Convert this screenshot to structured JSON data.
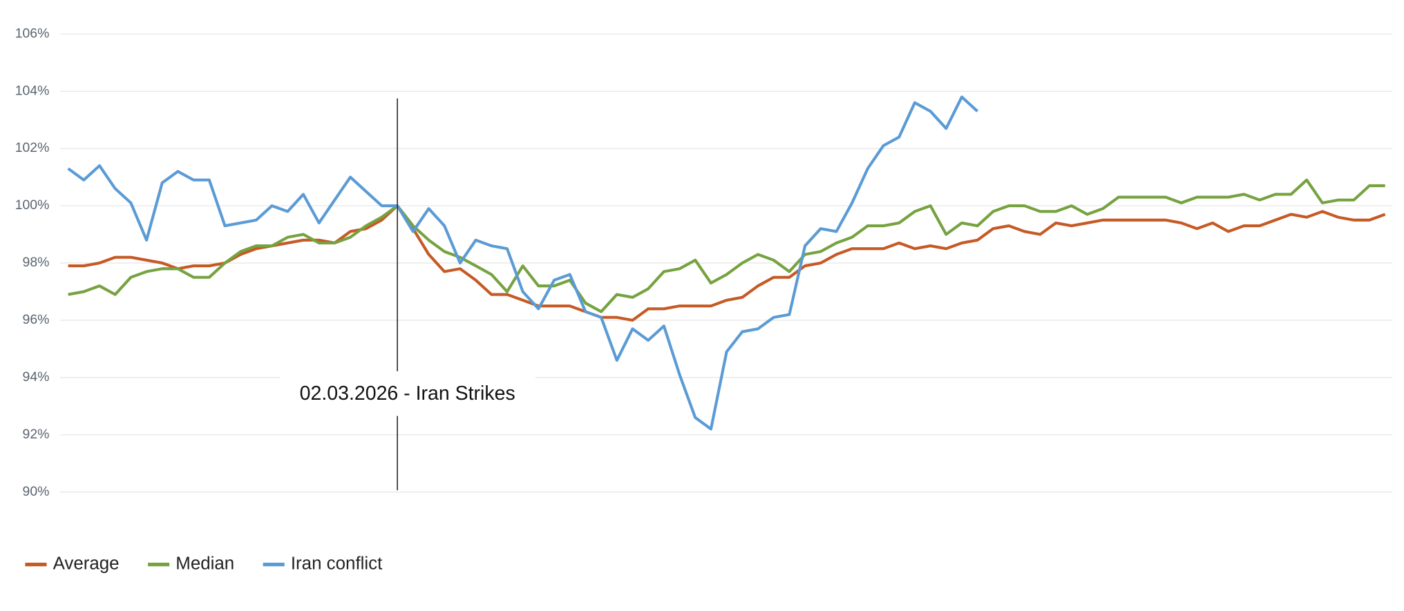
{
  "chart_data": {
    "type": "line",
    "categories": [
      null,
      null,
      null,
      null,
      null,
      null,
      null,
      null,
      null,
      null,
      null,
      null,
      null,
      null,
      null,
      null,
      null,
      null,
      null,
      null,
      null,
      null,
      null,
      null,
      null,
      null,
      null,
      null,
      null,
      null,
      null,
      null,
      null,
      null,
      null,
      null,
      null,
      null,
      null,
      null,
      null,
      null,
      null,
      null,
      null,
      null,
      null,
      null,
      null,
      null,
      null,
      null,
      null,
      null,
      null,
      null,
      null,
      null,
      null,
      null,
      null,
      null,
      null,
      null,
      null,
      null,
      null,
      null,
      null,
      null,
      null,
      null,
      null,
      null,
      null,
      null,
      null,
      null,
      null,
      null,
      null,
      null,
      null,
      null,
      null
    ],
    "series": [
      {
        "name": "Average",
        "color": "#c55a25",
        "values": [
          97.9,
          97.9,
          98.0,
          98.2,
          98.2,
          98.1,
          98.0,
          97.8,
          97.9,
          97.9,
          98.0,
          98.3,
          98.5,
          98.6,
          98.7,
          98.8,
          98.8,
          98.7,
          99.1,
          99.2,
          99.5,
          100.0,
          99.2,
          98.3,
          97.7,
          97.8,
          97.4,
          96.9,
          96.9,
          96.7,
          96.5,
          96.5,
          96.5,
          96.3,
          96.1,
          96.1,
          96.0,
          96.4,
          96.4,
          96.5,
          96.5,
          96.5,
          96.7,
          96.8,
          97.2,
          97.5,
          97.5,
          97.9,
          98.0,
          98.3,
          98.5,
          98.5,
          98.5,
          98.7,
          98.5,
          98.6,
          98.5,
          98.7,
          98.8,
          99.2,
          99.3,
          99.1,
          99.0,
          99.4,
          99.3,
          99.4,
          99.5,
          99.5,
          99.5,
          99.5,
          99.5,
          99.4,
          99.2,
          99.4,
          99.1,
          99.3,
          99.3,
          99.5,
          99.7,
          99.6,
          99.8,
          99.6,
          99.5,
          99.5,
          99.7
        ]
      },
      {
        "name": "Median",
        "color": "#76a240",
        "values": [
          96.9,
          97.0,
          97.2,
          96.9,
          97.5,
          97.7,
          97.8,
          97.8,
          97.5,
          97.5,
          98.0,
          98.4,
          98.6,
          98.6,
          98.9,
          99.0,
          98.7,
          98.7,
          98.9,
          99.3,
          99.6,
          100.0,
          99.3,
          98.8,
          98.4,
          98.2,
          97.9,
          97.6,
          97.0,
          97.9,
          97.2,
          97.2,
          97.4,
          96.6,
          96.3,
          96.9,
          96.8,
          97.1,
          97.7,
          97.8,
          98.1,
          97.3,
          97.6,
          98.0,
          98.3,
          98.1,
          97.7,
          98.3,
          98.4,
          98.7,
          98.9,
          99.3,
          99.3,
          99.4,
          99.8,
          100.0,
          99.0,
          99.4,
          99.3,
          99.8,
          100.0,
          100.0,
          99.8,
          99.8,
          100.0,
          99.7,
          99.9,
          100.3,
          100.3,
          100.3,
          100.3,
          100.1,
          100.3,
          100.3,
          100.3,
          100.4,
          100.2,
          100.4,
          100.4,
          100.9,
          100.1,
          100.2,
          100.2,
          100.7,
          100.7
        ]
      },
      {
        "name": "Iran conflict",
        "color": "#5b9bd5",
        "values": [
          101.3,
          100.9,
          101.4,
          100.6,
          100.1,
          98.8,
          100.8,
          101.2,
          100.9,
          100.9,
          99.3,
          99.4,
          99.5,
          100.0,
          99.8,
          100.4,
          99.4,
          100.2,
          101.0,
          100.5,
          100.0,
          100.0,
          99.1,
          99.9,
          99.3,
          98.0,
          98.8,
          98.6,
          98.5,
          97.0,
          96.4,
          97.4,
          97.6,
          96.3,
          96.1,
          94.6,
          95.7,
          95.3,
          95.8,
          94.1,
          92.6,
          92.2,
          94.9,
          95.6,
          95.7,
          96.1,
          96.2,
          98.6,
          99.2,
          99.1,
          100.1,
          101.3,
          102.1,
          102.4,
          103.6,
          103.3,
          102.7,
          103.8,
          103.3,
          null,
          null,
          null,
          null,
          null,
          null,
          null,
          null,
          null,
          null,
          null,
          null,
          null,
          null,
          null,
          null,
          null,
          null,
          null,
          null,
          null,
          null,
          null,
          null,
          null,
          null
        ]
      }
    ],
    "annotation": "02.03.2026 - Iran Strikes",
    "ylim": [
      90,
      106
    ],
    "yticks": [
      {
        "value": 90,
        "label": "90%"
      },
      {
        "value": 92,
        "label": "92%"
      },
      {
        "value": 94,
        "label": "94%"
      },
      {
        "value": 96,
        "label": "96%"
      },
      {
        "value": 98,
        "label": "98%"
      },
      {
        "value": 100,
        "label": "100%"
      },
      {
        "value": 102,
        "label": "102%"
      },
      {
        "value": 104,
        "label": "104%"
      },
      {
        "value": 106,
        "label": "106%"
      }
    ],
    "grid": true
  }
}
